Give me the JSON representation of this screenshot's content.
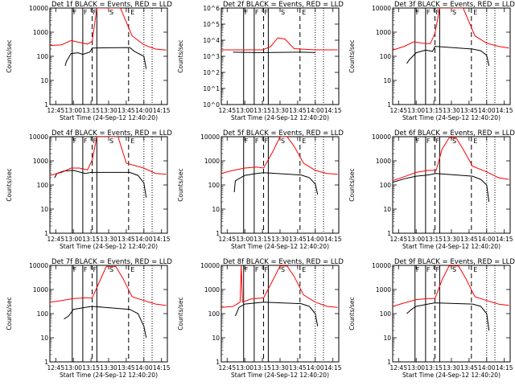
{
  "chart_data": [
    {
      "type": "line",
      "title": "Det 1f BLACK = Events, RED = LLD",
      "ylabel": "Counts/sec",
      "xlabel": "Start Time (24-Sep-12 12:40:20)",
      "xlim": [
        "12:40",
        "14:20"
      ],
      "ylim": [
        1,
        10000
      ],
      "yscale": "log",
      "y_ticks": [
        "1",
        "10",
        "100",
        "1000",
        "10000"
      ],
      "x_ticks": [
        "12:45",
        "13:00",
        "13:15",
        "13:30",
        "13:45",
        "14:00",
        "14:15"
      ],
      "markers": [
        "F",
        "F",
        "F",
        "S",
        "E"
      ],
      "series": [
        {
          "color": "#000000",
          "x": [
            "12:53",
            "12:54",
            "12:58",
            "13:04",
            "13:08",
            "13:14",
            "13:16",
            "13:48",
            "13:52",
            "14:00",
            "14:02"
          ],
          "y": [
            40,
            60,
            130,
            140,
            120,
            150,
            220,
            230,
            160,
            100,
            30
          ]
        },
        {
          "color": "#ff0000",
          "x": [
            "12:40",
            "12:50",
            "12:58",
            "13:05",
            "13:12",
            "13:16",
            "13:20",
            "13:40",
            "13:50",
            "14:00",
            "14:10",
            "14:19"
          ],
          "y": [
            280,
            300,
            450,
            380,
            320,
            420,
            10000,
            10000,
            700,
            300,
            200,
            180
          ]
        }
      ]
    },
    {
      "type": "line",
      "title": "Det 2f BLACK = Events, RED = LLD",
      "ylabel": "Counts/sec",
      "xlabel": "Start Time (24-Sep-12 12:40:20)",
      "xlim": [
        "12:40",
        "14:20"
      ],
      "ylim": [
        1,
        1000000
      ],
      "yscale": "log",
      "y_ticks": [
        "10^0",
        "10^1",
        "10^2",
        "10^3",
        "10^4",
        "10^5",
        "10^6"
      ],
      "x_ticks": [
        "12:45",
        "13:00",
        "13:15",
        "13:30",
        "13:45",
        "14:00",
        "14:15"
      ],
      "markers": [
        "F",
        "F",
        "F",
        "S",
        "E"
      ],
      "series": [
        {
          "color": "#000000",
          "x": [
            "12:50",
            "13:10",
            "13:16",
            "13:45",
            "13:50",
            "14:00"
          ],
          "y": [
            1800,
            1700,
            1700,
            1800,
            1800,
            1700
          ]
        },
        {
          "color": "#ff0000",
          "x": [
            "12:40",
            "13:15",
            "13:22",
            "13:28",
            "13:34",
            "13:42",
            "14:00",
            "14:19"
          ],
          "y": [
            2500,
            2500,
            4000,
            14000,
            12000,
            3000,
            2500,
            2500
          ]
        }
      ]
    },
    {
      "type": "line",
      "title": "Det 3f BLACK = Events, RED = LLD",
      "ylabel": "Counts/sec",
      "xlabel": "Start Time (24-Sep-12 12:40:20)",
      "xlim": [
        "12:40",
        "14:20"
      ],
      "ylim": [
        1,
        10000
      ],
      "yscale": "log",
      "y_ticks": [
        "1",
        "10",
        "100",
        "1000",
        "10000"
      ],
      "x_ticks": [
        "12:45",
        "13:00",
        "13:15",
        "13:30",
        "13:45",
        "14:00",
        "14:15"
      ],
      "markers": [
        "F",
        "F",
        "F",
        "S",
        "E"
      ],
      "series": [
        {
          "color": "#000000",
          "x": [
            "12:52",
            "12:54",
            "13:00",
            "13:08",
            "13:14",
            "13:16",
            "13:48",
            "13:55",
            "14:00",
            "14:02"
          ],
          "y": [
            50,
            70,
            140,
            180,
            160,
            260,
            200,
            170,
            110,
            40
          ]
        },
        {
          "color": "#ff0000",
          "x": [
            "12:40",
            "12:50",
            "12:58",
            "13:05",
            "13:12",
            "13:16",
            "13:20",
            "13:40",
            "13:50",
            "14:00",
            "14:10",
            "14:19"
          ],
          "y": [
            180,
            260,
            400,
            350,
            330,
            900,
            10000,
            10000,
            700,
            350,
            260,
            220
          ]
        }
      ]
    },
    {
      "type": "line",
      "title": "Det 4f BLACK = Events, RED = LLD",
      "ylabel": "Counts/sec",
      "xlabel": "Start Time (24-Sep-12 12:40:20)",
      "xlim": [
        "12:40",
        "14:20"
      ],
      "ylim": [
        1,
        10000
      ],
      "yscale": "log",
      "y_ticks": [
        "1",
        "10",
        "100",
        "1000",
        "10000"
      ],
      "x_ticks": [
        "12:45",
        "13:00",
        "13:15",
        "13:30",
        "13:45",
        "14:00",
        "14:15"
      ],
      "markers": [
        "F",
        "F",
        "F",
        "S",
        "E"
      ],
      "series": [
        {
          "color": "#000000",
          "x": [
            "12:44",
            "12:46",
            "12:52",
            "13:00",
            "13:10",
            "13:15",
            "13:48",
            "13:55",
            "14:00",
            "14:02"
          ],
          "y": [
            200,
            300,
            380,
            400,
            300,
            330,
            330,
            250,
            120,
            30
          ]
        },
        {
          "color": "#ff0000",
          "x": [
            "12:40",
            "12:50",
            "12:58",
            "13:05",
            "13:12",
            "13:16",
            "13:20",
            "13:38",
            "13:45",
            "14:00",
            "14:10",
            "14:19"
          ],
          "y": [
            250,
            330,
            500,
            500,
            420,
            1100,
            10000,
            10000,
            800,
            500,
            300,
            280
          ]
        }
      ]
    },
    {
      "type": "line",
      "title": "Det 5f BLACK = Events, RED = LLD",
      "ylabel": "Counts/sec",
      "xlabel": "Start Time (24-Sep-12 12:40:20)",
      "xlim": [
        "12:40",
        "14:20"
      ],
      "ylim": [
        1,
        10000
      ],
      "yscale": "log",
      "y_ticks": [
        "1",
        "10",
        "100",
        "1000",
        "10000"
      ],
      "x_ticks": [
        "12:45",
        "13:00",
        "13:15",
        "13:30",
        "13:45",
        "14:00",
        "14:15"
      ],
      "markers": [
        "F",
        "F",
        "F",
        "S",
        "E"
      ],
      "series": [
        {
          "color": "#000000",
          "x": [
            "12:51",
            "12:52",
            "13:00",
            "13:10",
            "13:16",
            "13:48",
            "13:55",
            "14:00",
            "14:02"
          ],
          "y": [
            50,
            150,
            250,
            300,
            320,
            260,
            200,
            110,
            40
          ]
        },
        {
          "color": "#ff0000",
          "x": [
            "12:40",
            "12:50",
            "13:00",
            "13:10",
            "13:16",
            "13:24",
            "13:30",
            "13:36",
            "13:42",
            "13:50",
            "14:00",
            "14:10",
            "14:19"
          ],
          "y": [
            300,
            400,
            500,
            550,
            500,
            2500,
            10000,
            10000,
            4000,
            800,
            400,
            300,
            280
          ]
        }
      ]
    },
    {
      "type": "line",
      "title": "Det 6f BLACK = Events, RED = LLD",
      "ylabel": "Counts/sec",
      "xlabel": "Start Time (24-Sep-12 12:40:20)",
      "xlim": [
        "12:40",
        "14:20"
      ],
      "ylim": [
        1,
        10000
      ],
      "yscale": "log",
      "y_ticks": [
        "1",
        "10",
        "100",
        "1000",
        "10000"
      ],
      "x_ticks": [
        "12:45",
        "13:00",
        "13:15",
        "13:30",
        "13:45",
        "14:00",
        "14:15"
      ],
      "markers": [
        "F",
        "F",
        "F",
        "S",
        "E"
      ],
      "series": [
        {
          "color": "#000000",
          "x": [
            "12:40",
            "12:50",
            "13:00",
            "13:10",
            "13:17",
            "13:48",
            "13:55",
            "14:00",
            "14:02"
          ],
          "y": [
            130,
            180,
            230,
            260,
            300,
            230,
            170,
            100,
            20
          ]
        },
        {
          "color": "#ff0000",
          "x": [
            "12:40",
            "12:50",
            "13:00",
            "13:10",
            "13:17",
            "13:22",
            "13:28",
            "13:34",
            "13:40",
            "13:48",
            "14:00",
            "14:10",
            "14:19"
          ],
          "y": [
            150,
            220,
            330,
            400,
            400,
            3000,
            9000,
            9000,
            3000,
            600,
            350,
            200,
            170
          ]
        }
      ]
    },
    {
      "type": "line",
      "title": "Det 7f BLACK = Events, RED = LLD",
      "ylabel": "Counts/sec",
      "xlabel": "Start Time (24-Sep-12 12:40:20)",
      "xlim": [
        "12:40",
        "14:20"
      ],
      "ylim": [
        1,
        10000
      ],
      "yscale": "log",
      "y_ticks": [
        "1",
        "10",
        "100",
        "1000",
        "10000"
      ],
      "x_ticks": [
        "12:45",
        "13:00",
        "13:15",
        "13:30",
        "13:45",
        "14:00",
        "14:15"
      ],
      "markers": [
        "F",
        "F",
        "F",
        "S",
        "E"
      ],
      "series": [
        {
          "color": "#000000",
          "x": [
            "12:52",
            "12:56",
            "13:00",
            "13:10",
            "13:16",
            "13:48",
            "13:55",
            "14:00",
            "14:02"
          ],
          "y": [
            60,
            80,
            150,
            180,
            200,
            150,
            100,
            30,
            10
          ]
        },
        {
          "color": "#ff0000",
          "x": [
            "12:40",
            "12:50",
            "13:00",
            "13:10",
            "13:16",
            "13:22",
            "13:28",
            "13:36",
            "13:42",
            "13:50",
            "14:00",
            "14:10",
            "14:19"
          ],
          "y": [
            300,
            350,
            420,
            450,
            450,
            2000,
            9000,
            9000,
            3000,
            500,
            350,
            250,
            220
          ]
        }
      ]
    },
    {
      "type": "line",
      "title": "Det 8f BLACK = Events, RED = LLD",
      "ylabel": "Counts/sec",
      "xlabel": "Start Time (24-Sep-12 12:40:20)",
      "xlim": [
        "12:40",
        "14:20"
      ],
      "ylim": [
        1,
        10000
      ],
      "yscale": "log",
      "y_ticks": [
        "1",
        "10",
        "100",
        "1000",
        "10000"
      ],
      "x_ticks": [
        "12:45",
        "13:00",
        "13:15",
        "13:30",
        "13:45",
        "14:00",
        "14:15"
      ],
      "markers": [
        "F",
        "F",
        "F",
        "S",
        "E"
      ],
      "series": [
        {
          "color": "#000000",
          "x": [
            "12:52",
            "12:55",
            "13:00",
            "13:10",
            "13:16",
            "13:48",
            "13:55",
            "14:00",
            "14:02"
          ],
          "y": [
            80,
            180,
            250,
            280,
            300,
            260,
            200,
            100,
            30
          ]
        },
        {
          "color": "#ff0000",
          "x": [
            "12:40",
            "12:50",
            "12:56",
            "12:57",
            "12:58",
            "13:05",
            "13:16",
            "13:24",
            "13:30",
            "13:36",
            "13:42",
            "13:50",
            "14:00",
            "14:10",
            "14:19"
          ],
          "y": [
            180,
            200,
            300,
            10000,
            300,
            400,
            450,
            2500,
            9500,
            9500,
            3500,
            600,
            300,
            200,
            180
          ]
        }
      ]
    },
    {
      "type": "line",
      "title": "Det 9f BLACK = Events, RED = LLD",
      "ylabel": "Counts/sec",
      "xlabel": "Start Time (24-Sep-12 12:40:20)",
      "xlim": [
        "12:40",
        "14:20"
      ],
      "ylim": [
        1,
        10000
      ],
      "yscale": "log",
      "y_ticks": [
        "1",
        "10",
        "100",
        "1000",
        "10000"
      ],
      "x_ticks": [
        "12:45",
        "13:00",
        "13:15",
        "13:30",
        "13:45",
        "14:00",
        "14:15"
      ],
      "markers": [
        "F",
        "F",
        "F",
        "S",
        "E"
      ],
      "series": [
        {
          "color": "#000000",
          "x": [
            "12:52",
            "12:56",
            "13:00",
            "13:10",
            "13:16",
            "13:48",
            "13:55",
            "14:00",
            "14:02"
          ],
          "y": [
            100,
            150,
            200,
            250,
            280,
            250,
            200,
            100,
            20
          ]
        },
        {
          "color": "#ff0000",
          "x": [
            "12:40",
            "12:50",
            "13:00",
            "13:10",
            "13:16",
            "13:22",
            "13:28",
            "13:36",
            "13:42",
            "13:50",
            "14:00",
            "14:10",
            "14:19"
          ],
          "y": [
            200,
            280,
            380,
            420,
            420,
            2500,
            9500,
            9500,
            3000,
            500,
            350,
            250,
            220
          ]
        }
      ]
    }
  ]
}
